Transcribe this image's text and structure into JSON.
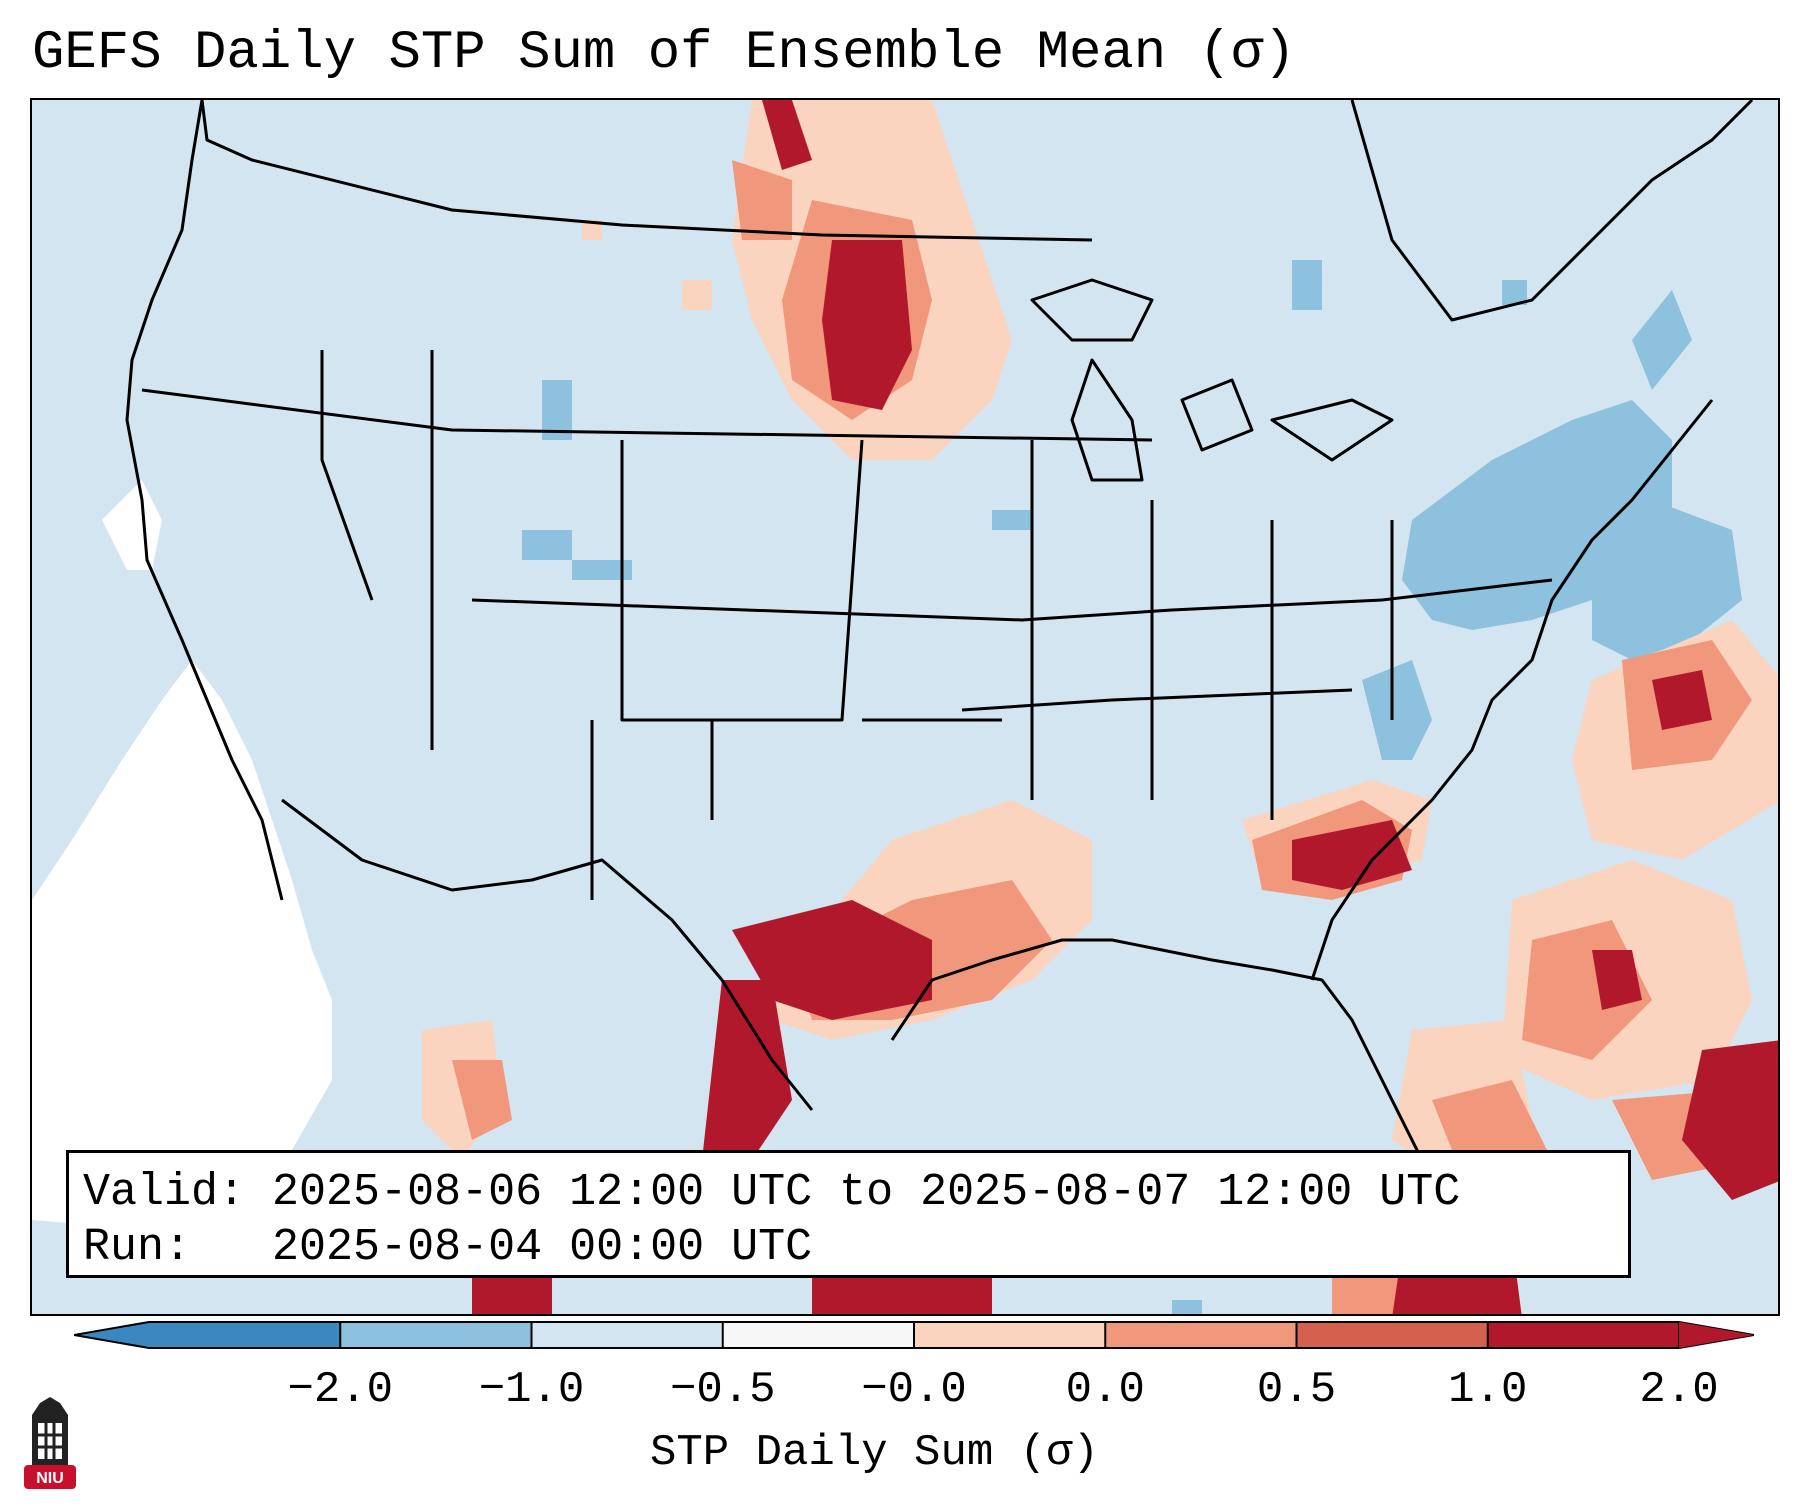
{
  "title": "GEFS Daily STP Sum of Ensemble Mean (σ)",
  "info": {
    "valid_label": "Valid:",
    "valid_value": "2025-08-06 12:00 UTC to 2025-08-07 12:00 UTC",
    "run_label": "Run:",
    "run_value": "2025-08-04 00:00 UTC"
  },
  "colorbar": {
    "label": "STP Daily Sum (σ)",
    "ticks": [
      "−2.0",
      "−1.0",
      "−0.5",
      "−0.0",
      "0.0",
      "0.5",
      "1.0",
      "2.0"
    ],
    "colors": [
      "#3b87c0",
      "#8dc1dd",
      "#d3e5f0",
      "#f7f7f7",
      "#fbd4c0",
      "#f1977c",
      "#d6604e",
      "#b2182b"
    ],
    "extend": "both"
  },
  "map": {
    "region": "Contiguous United States",
    "background_color": "#d3e5f0"
  },
  "logo": {
    "text": "NIU",
    "color": "#c8102e"
  }
}
